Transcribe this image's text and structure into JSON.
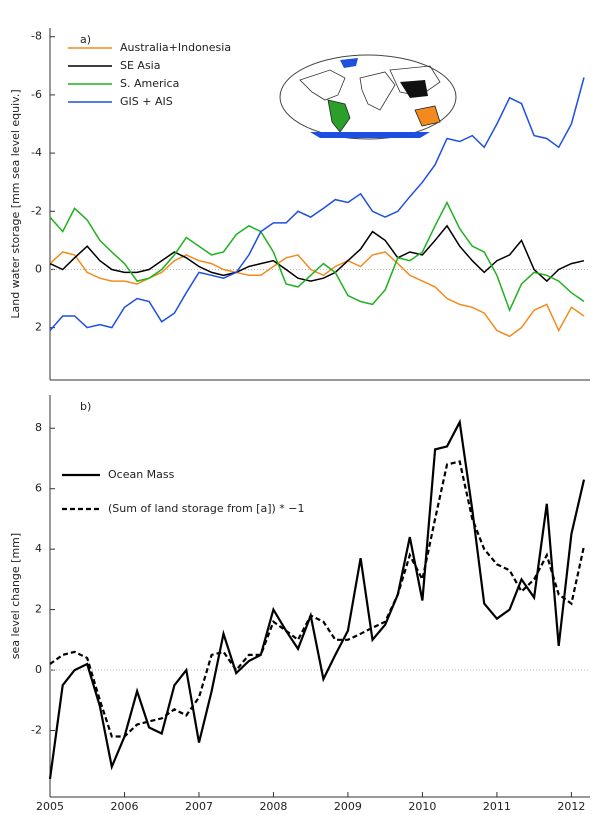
{
  "chart_data": [
    {
      "type": "line",
      "label": "a)",
      "ylabel": "Land water storage [mm sea level equiv.]",
      "x": [
        2005,
        2005.17,
        2005.33,
        2005.5,
        2005.67,
        2005.83,
        2006,
        2006.17,
        2006.33,
        2006.5,
        2006.67,
        2006.83,
        2007,
        2007.17,
        2007.33,
        2007.5,
        2007.67,
        2007.83,
        2008,
        2008.17,
        2008.33,
        2008.5,
        2008.67,
        2008.83,
        2009,
        2009.17,
        2009.33,
        2009.5,
        2009.67,
        2009.83,
        2010,
        2010.17,
        2010.33,
        2010.5,
        2010.67,
        2010.83,
        2011,
        2011.17,
        2011.33,
        2011.5,
        2011.67,
        2011.83,
        2012,
        2012.17
      ],
      "xlim": [
        2005,
        2012.25
      ],
      "ylim": [
        -8.3,
        3.8
      ],
      "y_inverted": true,
      "yticks": [
        -8,
        -6,
        -4,
        -2,
        0,
        2
      ],
      "zero_line": true,
      "legend": "upper left",
      "series": [
        {
          "name": "Australia+Indonesia",
          "color": "#f28a1e",
          "values": [
            -0.2,
            -0.6,
            -0.5,
            0.1,
            0.3,
            0.4,
            0.4,
            0.5,
            0.3,
            0.1,
            -0.3,
            -0.5,
            -0.3,
            -0.2,
            0,
            0.1,
            0.2,
            0.2,
            -0.1,
            -0.4,
            -0.5,
            0,
            0.2,
            -0.1,
            -0.3,
            -0.1,
            -0.5,
            -0.6,
            -0.2,
            0.2,
            0.4,
            0.6,
            1.0,
            1.2,
            1.3,
            1.5,
            2.1,
            2.3,
            2.0,
            1.4,
            1.2,
            2.1,
            1.3,
            1.6
          ]
        },
        {
          "name": "SE Asia",
          "color": "#000000",
          "values": [
            -0.2,
            0,
            -0.4,
            -0.8,
            -0.3,
            0,
            0.1,
            0.1,
            0,
            -0.3,
            -0.6,
            -0.4,
            -0.1,
            0.1,
            0.2,
            0.1,
            -0.1,
            -0.2,
            -0.3,
            0,
            0.3,
            0.4,
            0.3,
            0.1,
            -0.3,
            -0.7,
            -1.3,
            -1.0,
            -0.4,
            -0.6,
            -0.5,
            -1.0,
            -1.5,
            -0.8,
            -0.3,
            0.1,
            -0.3,
            -0.5,
            -1.0,
            0,
            0.4,
            0,
            -0.2,
            -0.3
          ]
        },
        {
          "name": "S. America",
          "color": "#1fb11f",
          "values": [
            -1.8,
            -1.3,
            -2.1,
            -1.7,
            -1.0,
            -0.6,
            -0.2,
            0.4,
            0.3,
            0,
            -0.5,
            -1.1,
            -0.8,
            -0.5,
            -0.6,
            -1.2,
            -1.5,
            -1.3,
            -0.6,
            0.5,
            0.6,
            0.2,
            -0.2,
            0.1,
            0.9,
            1.1,
            1.2,
            0.7,
            -0.4,
            -0.3,
            -0.6,
            -1.5,
            -2.3,
            -1.4,
            -0.8,
            -0.6,
            0.2,
            1.4,
            0.5,
            0.1,
            0.2,
            0.4,
            0.8,
            1.1
          ]
        },
        {
          "name": "GIS + AIS",
          "color": "#1f4fe0",
          "values": [
            2.1,
            1.6,
            1.6,
            2.0,
            1.9,
            2.0,
            1.3,
            1.0,
            1.1,
            1.8,
            1.5,
            0.8,
            0.1,
            0.2,
            0.3,
            0.1,
            -0.5,
            -1.3,
            -1.6,
            -1.6,
            -2.0,
            -1.8,
            -2.1,
            -2.4,
            -2.3,
            -2.6,
            -2.0,
            -1.8,
            -2.0,
            -2.5,
            -3.0,
            -3.6,
            -4.5,
            -4.4,
            -4.6,
            -4.2,
            -5.0,
            -5.9,
            -5.7,
            -4.6,
            -4.5,
            -4.2,
            -5.0,
            -6.6
          ]
        }
      ]
    },
    {
      "type": "line",
      "label": "b)",
      "ylabel": "sea level change [mm]",
      "x": [
        2005,
        2005.17,
        2005.33,
        2005.5,
        2005.67,
        2005.83,
        2006,
        2006.17,
        2006.33,
        2006.5,
        2006.67,
        2006.83,
        2007,
        2007.17,
        2007.33,
        2007.5,
        2007.67,
        2007.83,
        2008,
        2008.17,
        2008.33,
        2008.5,
        2008.67,
        2008.83,
        2009,
        2009.17,
        2009.33,
        2009.5,
        2009.67,
        2009.83,
        2010,
        2010.17,
        2010.33,
        2010.5,
        2010.67,
        2010.83,
        2011,
        2011.17,
        2011.33,
        2011.5,
        2011.67,
        2011.83,
        2012,
        2012.17
      ],
      "xlim": [
        2005,
        2012.25
      ],
      "xticks": [
        2005,
        2006,
        2007,
        2008,
        2009,
        2010,
        2011,
        2012
      ],
      "ylim": [
        -4.2,
        9.1
      ],
      "yticks": [
        -2,
        0,
        2,
        4,
        6,
        8
      ],
      "zero_line": true,
      "legend": "upper left",
      "series": [
        {
          "name": "Ocean Mass",
          "color": "#000000",
          "dash": false,
          "values": [
            -3.6,
            -0.5,
            0,
            0.2,
            -1.2,
            -3.2,
            -2.2,
            -0.7,
            -1.9,
            -2.1,
            -0.5,
            0,
            -2.4,
            -0.7,
            1.2,
            -0.1,
            0.3,
            0.5,
            2.0,
            1.3,
            0.7,
            1.8,
            -0.3,
            0.5,
            1.3,
            3.7,
            1.0,
            1.5,
            2.5,
            4.4,
            2.3,
            7.3,
            7.4,
            8.2,
            5.3,
            2.2,
            1.7,
            2.0,
            3.0,
            2.4,
            5.5,
            0.8,
            4.5,
            6.3
          ]
        },
        {
          "name": "(Sum of land storage from [a]) * −1",
          "color": "#000000",
          "dash": true,
          "values": [
            0.2,
            0.5,
            0.6,
            0.4,
            -1.0,
            -2.2,
            -2.2,
            -1.8,
            -1.7,
            -1.6,
            -1.3,
            -1.5,
            -0.9,
            0.5,
            0.6,
            0,
            0.5,
            0.5,
            1.6,
            1.3,
            1.0,
            1.8,
            1.6,
            1.0,
            1.0,
            1.2,
            1.4,
            1.6,
            2.5,
            3.8,
            3.0,
            5.0,
            6.8,
            6.9,
            5.0,
            4.0,
            3.5,
            3.3,
            2.6,
            3.0,
            3.8,
            2.5,
            2.2,
            4.1
          ]
        }
      ]
    }
  ]
}
